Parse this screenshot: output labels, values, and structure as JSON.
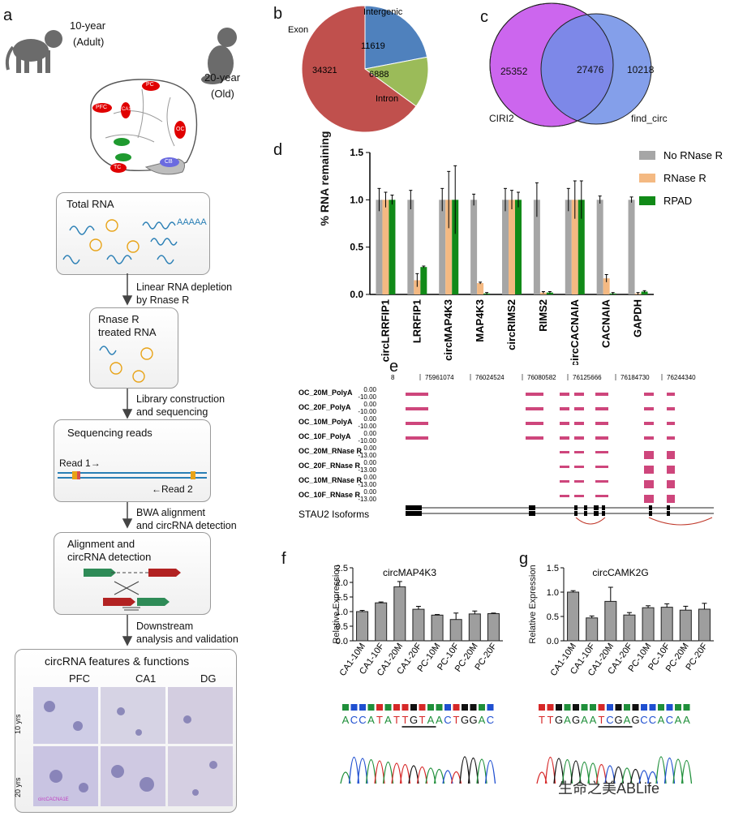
{
  "panel_a": {
    "label": "a",
    "monkey_young": {
      "line1": "10-year",
      "line2": "(Adult)"
    },
    "monkey_old": {
      "line1": "20-year",
      "line2": "(Old)"
    },
    "brain_regions": [
      "PFC",
      "PC",
      "CA1",
      "OC",
      "TC",
      "CB"
    ],
    "steps": {
      "total_rna": "Total RNA",
      "poly_a": "AAAAA",
      "depletion": [
        "Linear RNA depletion",
        "by Rnase R"
      ],
      "rnase_treated": [
        "Rnase R",
        "treated RNA"
      ],
      "library": [
        "Library construction",
        "and sequencing"
      ],
      "seq_reads": "Sequencing reads",
      "read1": "Read 1→",
      "read2": "←Read 2",
      "bwa": [
        "BWA alignment",
        "and circRNA detection"
      ],
      "alignment": [
        "Alignment and",
        "circRNA detection"
      ],
      "downstream": [
        "Downstream",
        "analysis and validation"
      ],
      "features": "circRNA features & functions",
      "cols": [
        "PFC",
        "CA1",
        "DG"
      ],
      "rows": [
        "10 yrs",
        "20 yrs"
      ],
      "probe": "circCACNA1E"
    }
  },
  "panel_b": {
    "label": "b",
    "chart_data": {
      "type": "pie",
      "categories": [
        "Intergenic",
        "Intron",
        "Exon"
      ],
      "values": [
        11619,
        6888,
        34321
      ],
      "colors": [
        "#4f81bd",
        "#9bbb59",
        "#c0504d"
      ]
    }
  },
  "panel_c": {
    "label": "c",
    "venn": {
      "left_label": "CIRI2",
      "right_label": "find_circ",
      "left_only": "25352",
      "both": "27476",
      "right_only": "10218"
    }
  },
  "panel_d": {
    "label": "d",
    "chart_data": {
      "type": "bar",
      "ylabel": "% RNA remaining",
      "ylim": [
        0,
        1.5
      ],
      "yticks": [
        "0.0",
        "0.5",
        "1.0",
        "1.5"
      ],
      "categories": [
        "circLRRFIP1",
        "LRRFIP1",
        "circMAP4K3",
        "MAP4K3",
        "circRIMS2",
        "RIMS2",
        "circCACNAIA",
        "CACNAIA",
        "GAPDH"
      ],
      "series": [
        {
          "name": "No RNase R",
          "color": "#a6a6a6",
          "values": [
            1.0,
            1.0,
            1.0,
            1.0,
            1.0,
            1.0,
            1.0,
            1.0,
            1.0
          ],
          "errors": [
            0.12,
            0.1,
            0.12,
            0.06,
            0.12,
            0.18,
            0.12,
            0.04,
            0.03
          ]
        },
        {
          "name": "RNase R",
          "color": "#f4b982",
          "values": [
            1.0,
            0.15,
            1.0,
            0.12,
            1.0,
            0.02,
            1.0,
            0.17,
            0.01
          ],
          "errors": [
            0.08,
            0.07,
            0.3,
            0.01,
            0.1,
            0.01,
            0.2,
            0.04,
            0.01
          ]
        },
        {
          "name": "RPAD",
          "color": "#118a18",
          "values": [
            1.0,
            0.29,
            1.0,
            0.01,
            1.0,
            0.02,
            1.0,
            0.01,
            0.03
          ],
          "errors": [
            0.05,
            0.01,
            0.36,
            0.01,
            0.08,
            0.01,
            0.2,
            0.01,
            0.01
          ]
        }
      ]
    }
  },
  "panel_e": {
    "label": "e",
    "coords": [
      "8",
      "75961074",
      "76024524",
      "76080582",
      "76125666",
      "76184730",
      "76244340"
    ],
    "tracks": [
      {
        "name": "OC_20M_PolyA",
        "top": "0.00",
        "bottom": "-10.00"
      },
      {
        "name": "OC_20F_PolyA",
        "top": "0.00",
        "bottom": "-10.00"
      },
      {
        "name": "OC_10M_PolyA",
        "top": "0.00",
        "bottom": "-10.00"
      },
      {
        "name": "OC_10F_PolyA",
        "top": "0.00",
        "bottom": "-10.00"
      },
      {
        "name": "OC_20M_RNase R",
        "top": "0.00",
        "bottom": "-13.00"
      },
      {
        "name": "OC_20F_RNase R",
        "top": "0.00",
        "bottom": "-13.00"
      },
      {
        "name": "OC_10M_RNase R",
        "top": "0.00",
        "bottom": "-13.00"
      },
      {
        "name": "OC_10F_RNase R",
        "top": "0.00",
        "bottom": "-13.00"
      }
    ],
    "isoforms_label": "STAU2 Isoforms"
  },
  "panel_f": {
    "label": "f",
    "chart_data": {
      "type": "bar",
      "title": "circMAP4K3",
      "ylabel": "Relative Expression",
      "ylim": [
        0,
        2.5
      ],
      "yticks": [
        "0.0",
        "0.5",
        "1.0",
        "1.5",
        "2.0",
        "2.5"
      ],
      "categories": [
        "CA1-10M",
        "CA1-10F",
        "CA1-20M",
        "CA1-20F",
        "PC-10M",
        "PC-10F",
        "PC-20M",
        "PC-20F"
      ],
      "values": [
        1.0,
        1.3,
        1.85,
        1.08,
        0.88,
        0.73,
        0.92,
        0.93
      ],
      "errors": [
        0.04,
        0.03,
        0.18,
        0.1,
        0.02,
        0.22,
        0.1,
        0.02
      ]
    },
    "sequence": "ACCATATTGTAACTGGAC"
  },
  "panel_g": {
    "label": "g",
    "chart_data": {
      "type": "bar",
      "title": "circCAMK2G",
      "ylabel": "Relative Expression",
      "ylim": [
        0,
        1.5
      ],
      "yticks": [
        "0.0",
        "0.5",
        "1.0",
        "1.5"
      ],
      "categories": [
        "CA1-10M",
        "CA1-10F",
        "CA1-20M",
        "CA1-20F",
        "PC-10M",
        "PC-10F",
        "PC-20M",
        "PC-20F"
      ],
      "values": [
        1.0,
        0.47,
        0.81,
        0.53,
        0.68,
        0.69,
        0.63,
        0.65
      ],
      "errors": [
        0.03,
        0.04,
        0.29,
        0.05,
        0.04,
        0.07,
        0.08,
        0.12
      ]
    },
    "sequence": "TTGAGAATCGAGCCACAA"
  },
  "watermark": "生命之美ABLife"
}
